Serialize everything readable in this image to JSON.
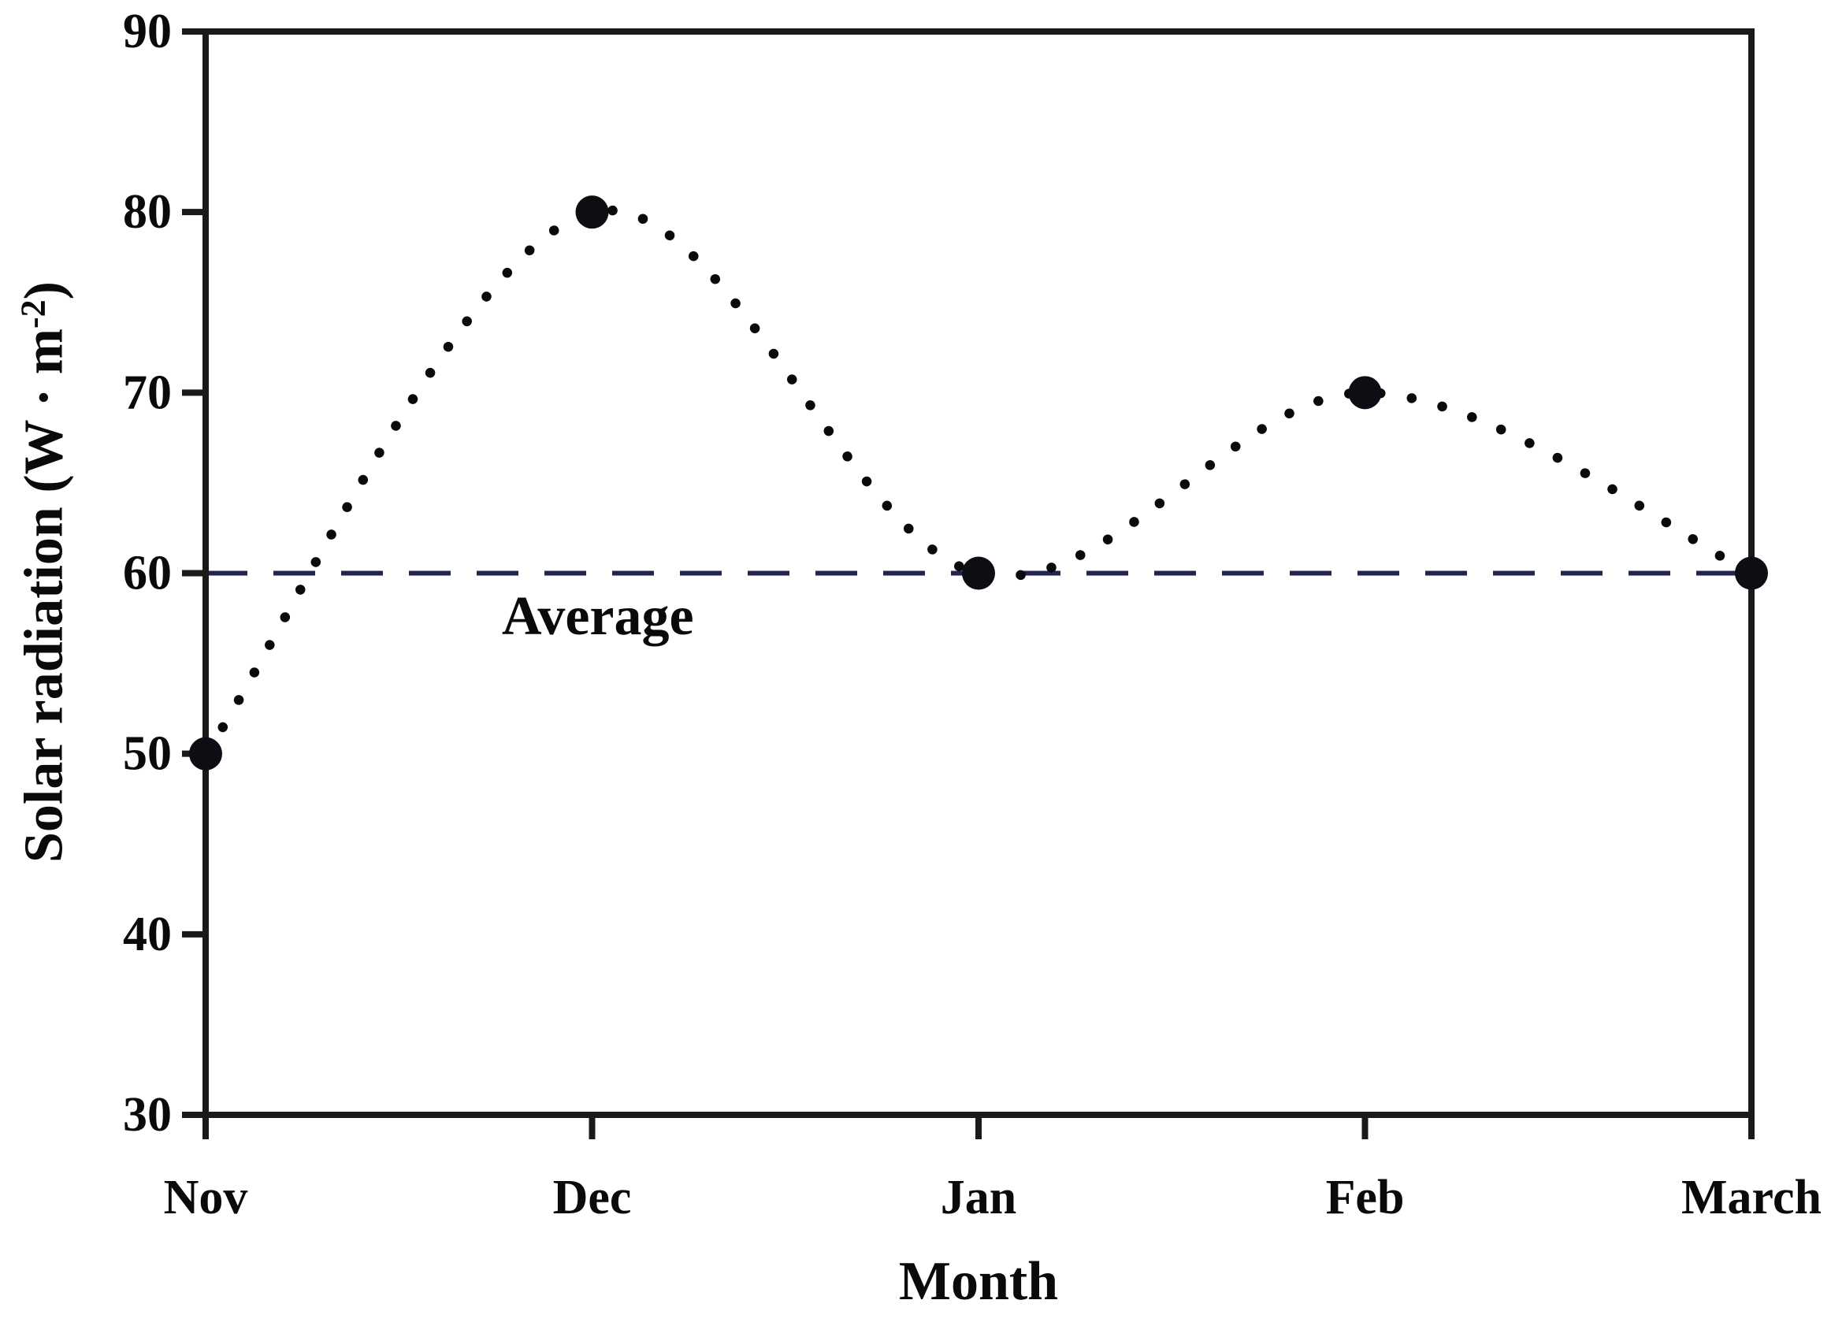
{
  "chart_data": {
    "type": "line",
    "title": "",
    "categories": [
      "Nov",
      "Dec",
      "Jan",
      "Feb",
      "March"
    ],
    "series": [
      {
        "name": "Solar radiation",
        "values": [
          50,
          80,
          60,
          70,
          60
        ]
      }
    ],
    "average_line": {
      "value": 60,
      "label": "Average"
    },
    "xlabel": "Month",
    "ylabel_prefix": "Solar radiation (W · m",
    "ylabel_superscript": "-2",
    "ylabel_suffix": ")",
    "ylim": [
      30,
      90
    ],
    "yticks": [
      30,
      40,
      50,
      60,
      70,
      80,
      90
    ],
    "grid": false,
    "legend_position": "none",
    "line_style": "dotted",
    "marker_style": "filled-circle",
    "colors": {
      "curve": "#0a0a0a",
      "marker": "#0d0d14",
      "average_line": "#23234f",
      "axis": "#1a1a1a",
      "text": "#0a0a0a"
    }
  }
}
